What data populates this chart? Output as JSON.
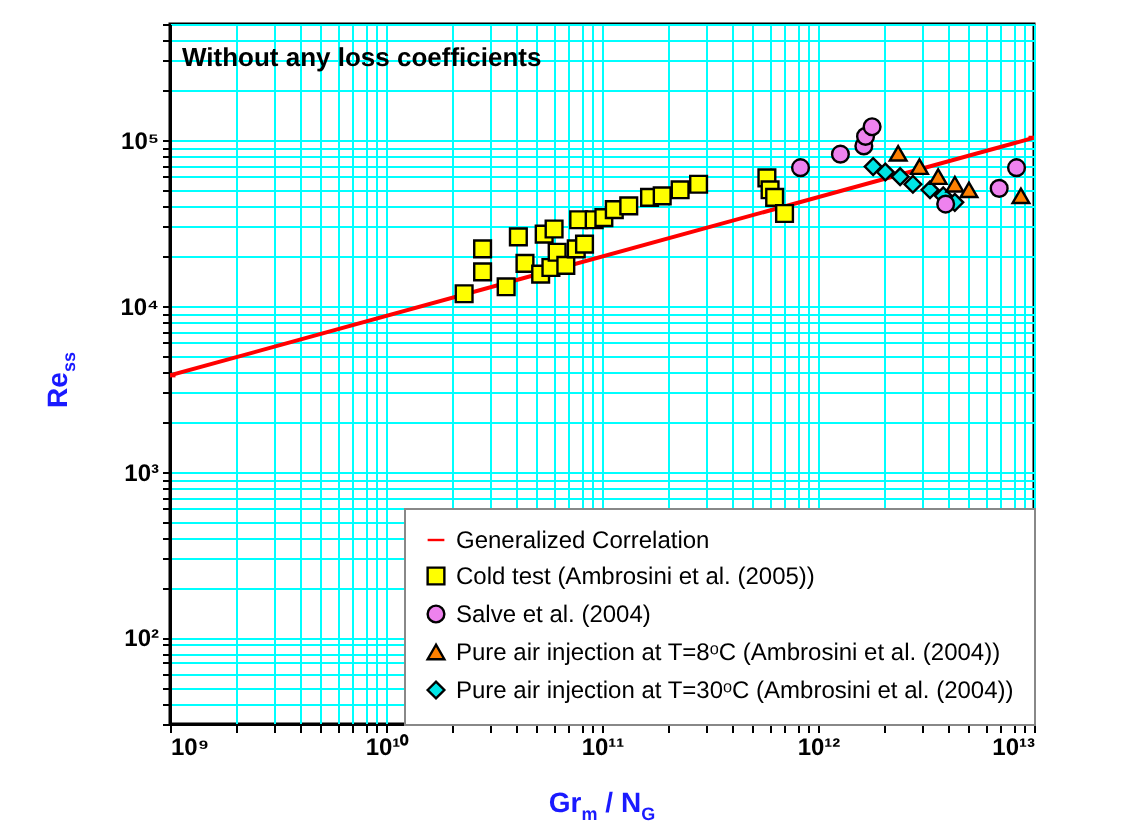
{
  "chart_data": {
    "type": "scatter",
    "title": "Without any loss coefficients",
    "xlabel": "Gr$_{m}$ / N$_{G}$",
    "ylabel": "Re$_{ss}$",
    "log": "xy",
    "grid": true,
    "legend": "bottom right",
    "xlim": [
      1000000000,
      10000000000000
    ],
    "ylim": [
      30,
      500000
    ],
    "xticks": [
      {
        "value": 1000000000,
        "label": "10⁹"
      },
      {
        "value": 2000000000,
        "label": null
      },
      {
        "value": 3000000000,
        "label": null
      },
      {
        "value": 4000000000,
        "label": null
      },
      {
        "value": 5000000000,
        "label": null
      },
      {
        "value": 6000000000,
        "label": null
      },
      {
        "value": 7000000000,
        "label": null
      },
      {
        "value": 8000000000,
        "label": null
      },
      {
        "value": 9000000000,
        "label": null
      },
      {
        "value": 10000000000,
        "label": "10¹⁰"
      },
      {
        "value": 20000000000,
        "label": null
      },
      {
        "value": 30000000000,
        "label": null
      },
      {
        "value": 40000000000,
        "label": null
      },
      {
        "value": 50000000000,
        "label": null
      },
      {
        "value": 60000000000,
        "label": null
      },
      {
        "value": 70000000000,
        "label": null
      },
      {
        "value": 80000000000,
        "label": null
      },
      {
        "value": 90000000000,
        "label": null
      },
      {
        "value": 100000000000,
        "label": "10¹¹"
      },
      {
        "value": 200000000000,
        "label": null
      },
      {
        "value": 300000000000,
        "label": null
      },
      {
        "value": 400000000000,
        "label": null
      },
      {
        "value": 500000000000,
        "label": null
      },
      {
        "value": 600000000000,
        "label": null
      },
      {
        "value": 700000000000,
        "label": null
      },
      {
        "value": 800000000000,
        "label": null
      },
      {
        "value": 900000000000,
        "label": null
      },
      {
        "value": 1000000000000,
        "label": "10¹²"
      },
      {
        "value": 2000000000000,
        "label": null
      },
      {
        "value": 3000000000000,
        "label": null
      },
      {
        "value": 4000000000000,
        "label": null
      },
      {
        "value": 5000000000000,
        "label": null
      },
      {
        "value": 6000000000000,
        "label": null
      },
      {
        "value": 7000000000000,
        "label": null
      },
      {
        "value": 8000000000000,
        "label": null
      },
      {
        "value": 9000000000000,
        "label": null
      },
      {
        "value": 10000000000000,
        "label": "10¹³"
      }
    ],
    "yticks": [
      {
        "value": 30,
        "label": null
      },
      {
        "value": 40,
        "label": null
      },
      {
        "value": 50,
        "label": null
      },
      {
        "value": 60,
        "label": null
      },
      {
        "value": 70,
        "label": null
      },
      {
        "value": 80,
        "label": null
      },
      {
        "value": 90,
        "label": null
      },
      {
        "value": 100,
        "label": "10²"
      },
      {
        "value": 200,
        "label": null
      },
      {
        "value": 300,
        "label": null
      },
      {
        "value": 400,
        "label": null
      },
      {
        "value": 500,
        "label": null
      },
      {
        "value": 600,
        "label": null
      },
      {
        "value": 700,
        "label": null
      },
      {
        "value": 800,
        "label": null
      },
      {
        "value": 900,
        "label": null
      },
      {
        "value": 1000,
        "label": "10³"
      },
      {
        "value": 2000,
        "label": null
      },
      {
        "value": 3000,
        "label": null
      },
      {
        "value": 4000,
        "label": null
      },
      {
        "value": 5000,
        "label": null
      },
      {
        "value": 6000,
        "label": null
      },
      {
        "value": 7000,
        "label": null
      },
      {
        "value": 8000,
        "label": null
      },
      {
        "value": 9000,
        "label": null
      },
      {
        "value": 10000,
        "label": "10⁴"
      },
      {
        "value": 20000,
        "label": null
      },
      {
        "value": 30000,
        "label": null
      },
      {
        "value": 40000,
        "label": null
      },
      {
        "value": 50000,
        "label": null
      },
      {
        "value": 60000,
        "label": null
      },
      {
        "value": 70000,
        "label": null
      },
      {
        "value": 80000,
        "label": null
      },
      {
        "value": 90000,
        "label": null
      },
      {
        "value": 100000,
        "label": "10⁵"
      },
      {
        "value": 200000,
        "label": null
      },
      {
        "value": 300000,
        "label": null
      },
      {
        "value": 400000,
        "label": null
      },
      {
        "value": 500000,
        "label": null
      }
    ],
    "series": [
      {
        "name": "Generalized Correlation",
        "type": "line",
        "line_style": "solid",
        "marker": "none",
        "color": "#ff0000",
        "x": [
          1000000000,
          10000000000000
        ],
        "values": [
          3800,
          103000
        ]
      },
      {
        "name": "Cold test (Ambrosini et al. (2005))",
        "type": "scatter",
        "marker": "square",
        "color": "#ffff00",
        "x": [
          23000000000,
          28000000000,
          28000000000,
          36000000000,
          41000000000,
          44000000000,
          52000000000,
          54000000000,
          60000000000,
          58000000000,
          62000000000,
          68000000000,
          76000000000,
          78000000000,
          83000000000,
          92000000000,
          102000000000,
          114000000000,
          133000000000,
          166000000000,
          190000000000,
          230000000000,
          280000000000,
          580000000000,
          600000000000,
          630000000000,
          700000000000
        ],
        "values": [
          11800,
          16000,
          22000,
          13000,
          26000,
          18000,
          15500,
          27000,
          29000,
          17000,
          21000,
          17500,
          22000,
          33000,
          23500,
          33000,
          34000,
          38000,
          40000,
          45000,
          46000,
          50000,
          54000,
          59000,
          50000,
          45000,
          36000
        ]
      },
      {
        "name": "Salve et al. (2004)",
        "type": "scatter",
        "marker": "circle",
        "color": "#ee82ee",
        "x": [
          830000000000,
          1270000000000,
          1630000000000,
          1660000000000,
          1780000000000,
          3900000000000,
          6900000000000,
          8300000000000
        ],
        "values": [
          68000,
          82000,
          92000,
          105000,
          120000,
          41000,
          51000,
          68000
        ]
      },
      {
        "name": "Pure air injection at T=8ᵒC (Ambrosini et al. (2004))",
        "type": "scatter",
        "marker": "triangle",
        "color": "#ff8000",
        "x": [
          2350000000000,
          2950000000000,
          3600000000000,
          4300000000000,
          5000000000000,
          8700000000000
        ],
        "values": [
          83000,
          69000,
          60000,
          54000,
          50000,
          46000
        ]
      },
      {
        "name": "Pure air injection at T=30ᵒC (Ambrosini et al. (2004))",
        "type": "scatter",
        "marker": "diamond",
        "color": "#00e5e5",
        "x": [
          1800000000000,
          2050000000000,
          2400000000000,
          2750000000000,
          3300000000000,
          3800000000000,
          4300000000000
        ],
        "values": [
          69000,
          64000,
          60000,
          54000,
          50000,
          46000,
          42000
        ]
      }
    ]
  }
}
